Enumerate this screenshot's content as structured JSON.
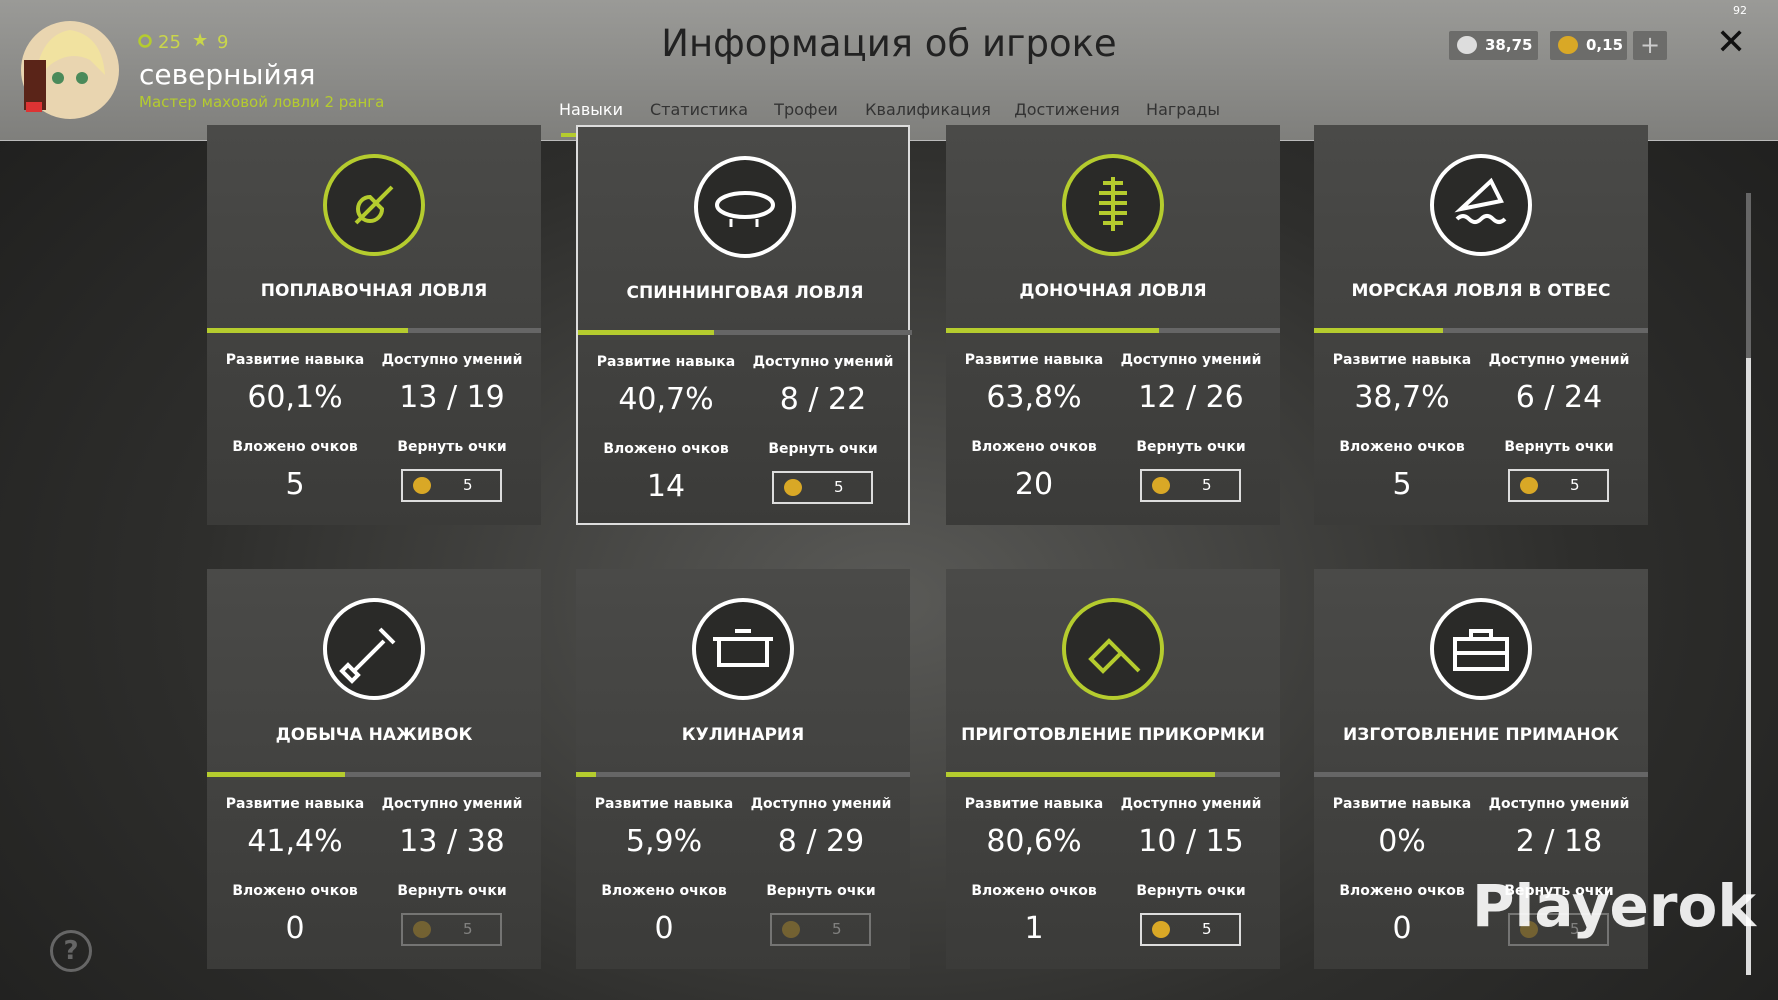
{
  "header": {
    "title": "Информация об игроке",
    "level": "25",
    "stars": "9",
    "name": "северныйяя",
    "rank": "Мастер маховой ловли 2 ранга",
    "silver": "38,75",
    "gold": "0,15",
    "corner": "92"
  },
  "tabs": {
    "items": [
      "Навыки",
      "Статистика",
      "Трофеи",
      "Квалификация",
      "Достижения",
      "Награды"
    ],
    "active": 0
  },
  "labels": {
    "progress": "Развитие навыка",
    "available": "Доступно умений",
    "invested": "Вложено очков",
    "refund": "Вернуть очки"
  },
  "selected_card": 1,
  "cards": [
    {
      "title": "ПОПЛАВОЧНАЯ ЛОВЛЯ",
      "progress": 60.1,
      "progress_label": "60,1%",
      "available": "13 / 19",
      "invested": "5",
      "refund_cost": "5",
      "refund_enabled": true,
      "icon_color": "#b5cc2e"
    },
    {
      "title": "СПИННИНГОВАЯ ЛОВЛЯ",
      "progress": 40.7,
      "progress_label": "40,7%",
      "available": "8 / 22",
      "invested": "14",
      "refund_cost": "5",
      "refund_enabled": true,
      "icon_color": "#ffffff"
    },
    {
      "title": "ДОНОЧНАЯ ЛОВЛЯ",
      "progress": 63.8,
      "progress_label": "63,8%",
      "available": "12 / 26",
      "invested": "20",
      "refund_cost": "5",
      "refund_enabled": true,
      "icon_color": "#b5cc2e"
    },
    {
      "title": "МОРСКАЯ ЛОВЛЯ В ОТВЕС",
      "progress": 38.7,
      "progress_label": "38,7%",
      "available": "6 / 24",
      "invested": "5",
      "refund_cost": "5",
      "refund_enabled": true,
      "icon_color": "#ffffff"
    },
    {
      "title": "ДОБЫЧА НАЖИВОК",
      "progress": 41.4,
      "progress_label": "41,4%",
      "available": "13 / 38",
      "invested": "0",
      "refund_cost": "5",
      "refund_enabled": false,
      "icon_color": "#ffffff"
    },
    {
      "title": "КУЛИНАРИЯ",
      "progress": 5.9,
      "progress_label": "5,9%",
      "available": "8 / 29",
      "invested": "0",
      "refund_cost": "5",
      "refund_enabled": false,
      "icon_color": "#ffffff"
    },
    {
      "title": "ПРИГОТОВЛЕНИЕ ПРИКОРМКИ",
      "progress": 80.6,
      "progress_label": "80,6%",
      "available": "10 / 15",
      "invested": "1",
      "refund_cost": "5",
      "refund_enabled": true,
      "icon_color": "#b5cc2e"
    },
    {
      "title": "ИЗГОТОВЛЕНИЕ ПРИМАНОК",
      "progress": 0,
      "progress_label": "0%",
      "available": "2 / 18",
      "invested": "0",
      "refund_cost": "5",
      "refund_enabled": false,
      "icon_color": "#ffffff"
    }
  ],
  "watermark": "Playerok"
}
